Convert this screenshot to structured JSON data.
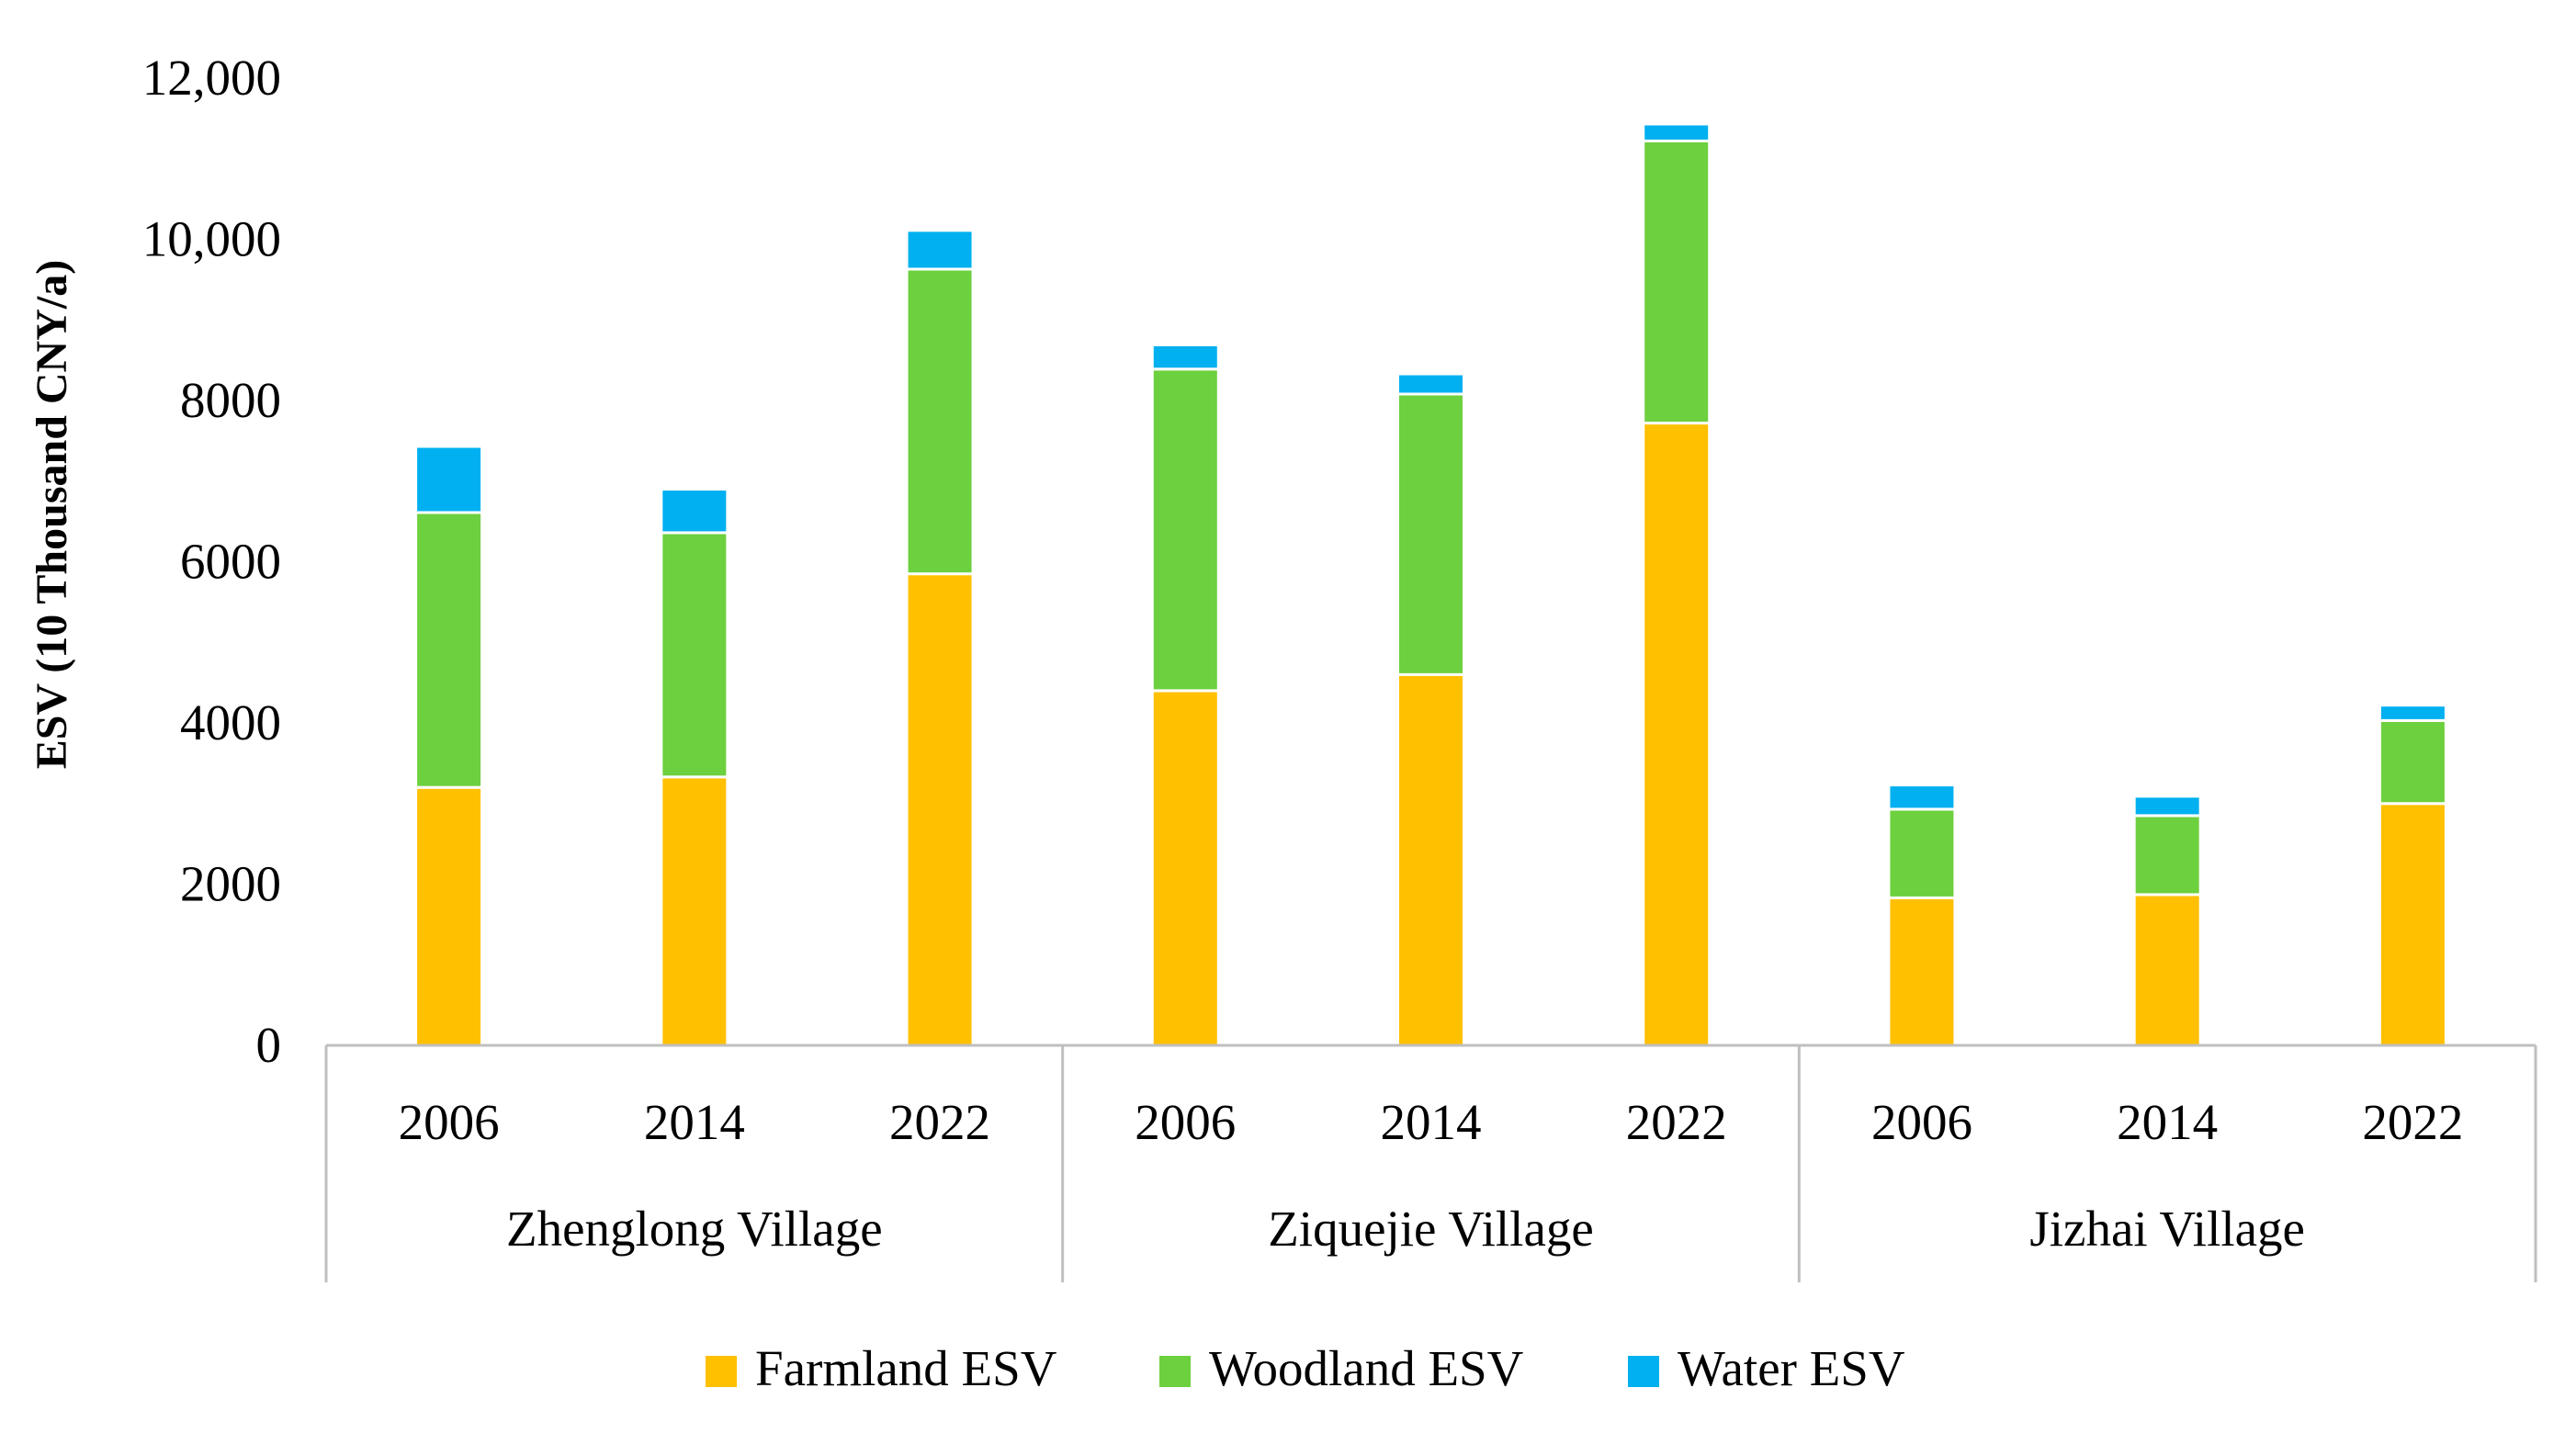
{
  "chart_data": {
    "type": "bar",
    "stacked": true,
    "title": "",
    "ylabel": "ESV (10 Thousand CNY/a)",
    "xlabel": "",
    "ylim": [
      0,
      12000
    ],
    "yticks": [
      0,
      2000,
      4000,
      6000,
      8000,
      10000,
      12000
    ],
    "ytick_labels": [
      "0",
      "2000",
      "4000",
      "6000",
      "8000",
      "10,000",
      "12,000"
    ],
    "grid": false,
    "legend_position": "bottom",
    "groups": [
      "Zhenglong Village",
      "Ziquejie Village",
      "Jizhai Village"
    ],
    "categories": [
      "2006",
      "2014",
      "2022",
      "2006",
      "2014",
      "2022",
      "2006",
      "2014",
      "2022"
    ],
    "series": [
      {
        "name": "Farmland ESV",
        "color": "#FFC000",
        "values": [
          3200,
          3330,
          5850,
          4400,
          4600,
          7720,
          1830,
          1870,
          3000
        ]
      },
      {
        "name": "Woodland ESV",
        "color": "#6DD03E",
        "values": [
          3410,
          3030,
          3780,
          3990,
          3480,
          3500,
          1100,
          980,
          1030
        ]
      },
      {
        "name": "Water ESV",
        "color": "#00B0F0",
        "values": [
          820,
          540,
          480,
          300,
          250,
          210,
          300,
          240,
          190
        ]
      }
    ]
  }
}
